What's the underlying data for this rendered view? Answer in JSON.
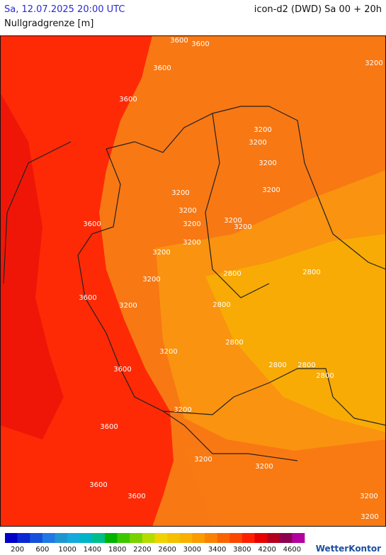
{
  "header": {
    "valid_time": "Sa, 12.07.2025 20:00 UTC",
    "model_run": "icon-d2 (DWD) Sa 00 + 20h",
    "parameter": "Nullgradgrenze [m]"
  },
  "contour_labels": [
    3600,
    3600,
    3600,
    3600,
    3200,
    3200,
    3200,
    3200,
    3200,
    3200,
    3200,
    3200,
    3200,
    3200,
    3600,
    3200,
    3200,
    3200,
    2800,
    2800,
    3600,
    3200,
    2800,
    2800,
    3200,
    2800,
    2800,
    2800,
    3600,
    3200,
    3600,
    3200,
    3200,
    3600,
    3600,
    3200,
    3200
  ],
  "colorbar": {
    "colors": [
      "#0000c8",
      "#0a28d4",
      "#1450dc",
      "#1e78e6",
      "#1e96d2",
      "#14aadc",
      "#00b4c8",
      "#00be8c",
      "#00b400",
      "#3cc800",
      "#78d200",
      "#b4dc00",
      "#f0d200",
      "#f5c000",
      "#fab000",
      "#fa9b00",
      "#fa8200",
      "#fa6400",
      "#fa4600",
      "#ff1e00",
      "#e60000",
      "#b4001e",
      "#8c0050",
      "#b400a0"
    ],
    "labels": [
      200,
      600,
      1000,
      1400,
      1800,
      2200,
      2600,
      3000,
      3400,
      3800,
      4200,
      4600
    ]
  },
  "footer": {
    "brand": "WetterKontor"
  }
}
